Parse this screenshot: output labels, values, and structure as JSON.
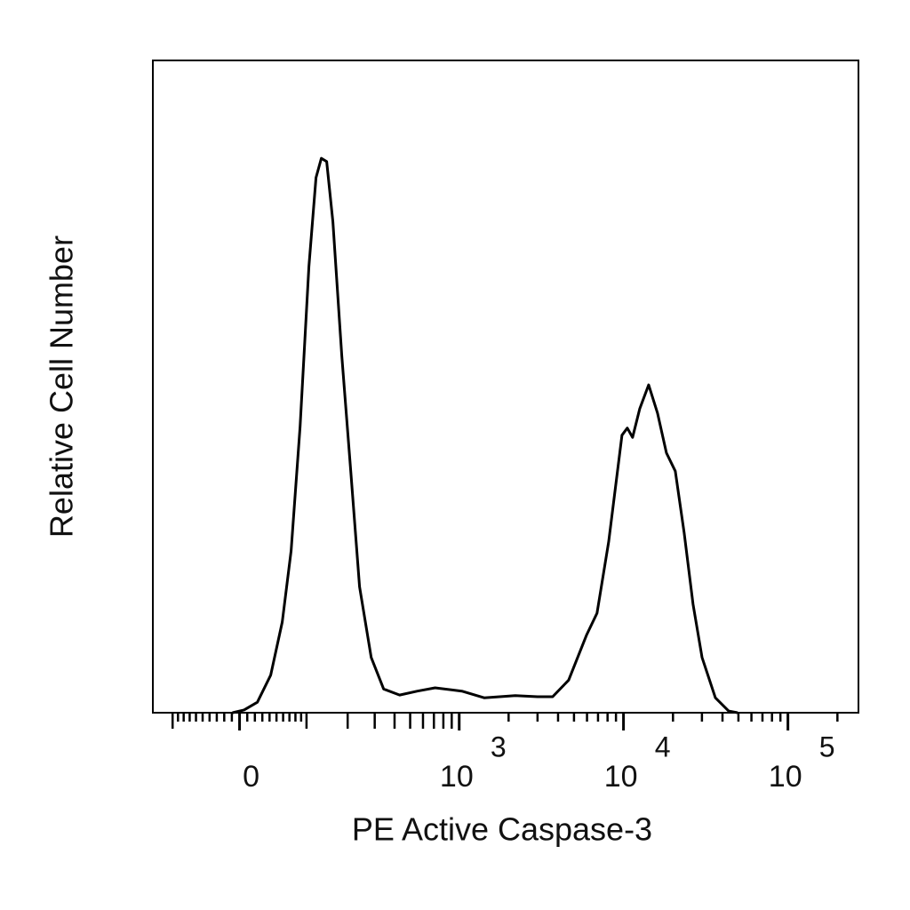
{
  "chart_data": {
    "type": "line",
    "xlabel": "PE Active Caspase-3",
    "ylabel": "Relative Cell Number",
    "xscale": "biexponential",
    "color": "#000000",
    "x": [
      -9.2,
      5.8,
      23.3,
      41.6,
      58.7,
      72.7,
      88.1,
      104.6,
      119,
      130.7,
      143,
      158.5,
      182.6,
      209.7,
      239.8,
      284.8,
      341.5,
      430.4,
      554.5,
      712,
      1038,
      1419,
      2197,
      2999,
      3707,
      4638,
      5948,
      6905,
      8122,
      9790,
      10550,
      11360,
      12555,
      14225,
      16105,
      18250,
      20660,
      23410,
      26500,
      30030,
      36210,
      43610,
      49400
    ],
    "values": [
      0,
      0.5,
      1.9,
      6.8,
      16.4,
      29.3,
      51.8,
      80.7,
      96.8,
      100.3,
      99.7,
      88.8,
      64.6,
      43.7,
      22.8,
      10,
      4.3,
      3.2,
      3.9,
      4.5,
      3.9,
      2.7,
      3.1,
      2.9,
      2.9,
      5.9,
      14,
      18,
      30.9,
      50.2,
      51.5,
      49.8,
      55,
      59.3,
      54.2,
      47,
      43.7,
      32.5,
      19.6,
      10,
      2.7,
      0.3,
      0
    ],
    "xlim": [
      -142,
      268500
    ],
    "ylim": [
      0,
      118
    ],
    "xticks": [
      0,
      {
        "value": 1000,
        "label": "10",
        "exponent": "3"
      },
      {
        "value": 10000,
        "label": "10",
        "exponent": "4"
      },
      {
        "value": 100000,
        "label": "10",
        "exponent": "5"
      }
    ],
    "xminorticks": [
      -100,
      -90,
      -80,
      -70,
      -60,
      -50,
      -40,
      -30,
      -20,
      -10,
      10,
      20,
      30,
      40,
      50,
      60,
      70,
      80,
      90,
      100,
      200,
      300,
      400,
      500,
      600,
      700,
      800,
      900,
      2000,
      3000,
      4000,
      5000,
      6000,
      7000,
      8000,
      9000,
      20000,
      30000,
      40000,
      50000,
      60000,
      70000,
      80000,
      90000,
      200000
    ]
  }
}
